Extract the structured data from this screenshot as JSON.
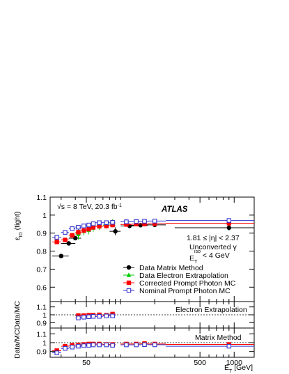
{
  "chart_data": {
    "type": "scatter",
    "xscale": "log",
    "x_ticks": [
      50,
      500,
      1000
    ],
    "x_tick_labels": [
      "50",
      "500",
      "1000"
    ],
    "xlabel_main": "E",
    "xlabel_sub": "T",
    "xlabel_unit": " [GeV]",
    "xlim": [
      24,
      1500
    ],
    "main": {
      "ylabel_main": "ε",
      "ylabel_sub": "ID",
      "ylabel_tail": " (tight)",
      "ylim": [
        0.52,
        1.1
      ],
      "y_ticks": [
        0.6,
        0.7,
        0.8,
        0.9,
        1.0,
        1.1
      ],
      "y_tick_labels": [
        "0.6",
        "0.7",
        "0.8",
        "0.9",
        "1",
        "1.1"
      ],
      "atlas_label": "ATLAS",
      "energy_label": "√s = 8 TeV, 20.3 fb",
      "energy_sup": "-1",
      "eta_label": "1.81 ≤ |η| < 2.37",
      "conv_label": "Unconverted γ",
      "iso_label_pre": "E",
      "iso_label_sup": "iso",
      "iso_label_sub": "T",
      "iso_label_post": " < 4 GeV",
      "series": [
        {
          "name": "Data Matrix Method",
          "color": "#000000",
          "marker": "circle",
          "x": [
            30,
            35,
            40,
            90,
            120,
            150,
            200,
            900
          ],
          "y": [
            0.773,
            0.843,
            0.872,
            0.91,
            0.94,
            0.944,
            0.946,
            0.93
          ],
          "xerr": [
            [
              25,
              35
            ],
            [
              30,
              40
            ],
            [
              35,
              45
            ],
            [
              80,
              100
            ],
            [
              100,
              150
            ],
            [
              125,
              175
            ],
            [
              150,
              250
            ],
            [
              300,
              1500
            ]
          ],
          "yerr": [
            0.012,
            0.012,
            0.012,
            0.022,
            0.01,
            0.01,
            0.01,
            0.015
          ]
        },
        {
          "name": "Data Electron Extrapolation",
          "color": "#00cc00",
          "marker": "triangle",
          "x": [
            42.5,
            47.5,
            52.5,
            57.5,
            65,
            75,
            85
          ],
          "y": [
            0.895,
            0.912,
            0.918,
            0.93,
            0.938,
            0.945,
            0.955
          ],
          "xerr": [
            [
              40,
              45
            ],
            [
              45,
              50
            ],
            [
              50,
              55
            ],
            [
              55,
              60
            ],
            [
              60,
              70
            ],
            [
              70,
              80
            ],
            [
              80,
              90
            ]
          ],
          "yerr": [
            0.03,
            0.025,
            0.025,
            0.022,
            0.02,
            0.02,
            0.022
          ]
        },
        {
          "name": "Corrected Prompt Photon MC",
          "color": "#ff0000",
          "marker": "square",
          "x": [
            27.5,
            32.5,
            37.5,
            42.5,
            47.5,
            52.5,
            57.5,
            65,
            75,
            85,
            112.5,
            137.5,
            162.5,
            200,
            900
          ],
          "y": [
            0.851,
            0.862,
            0.888,
            0.905,
            0.914,
            0.922,
            0.932,
            0.938,
            0.94,
            0.945,
            0.948,
            0.95,
            0.95,
            0.952,
            0.955
          ],
          "xerr": [
            [
              25,
              30
            ],
            [
              30,
              35
            ],
            [
              35,
              40
            ],
            [
              40,
              45
            ],
            [
              45,
              50
            ],
            [
              50,
              55
            ],
            [
              55,
              60
            ],
            [
              60,
              70
            ],
            [
              70,
              80
            ],
            [
              80,
              90
            ],
            [
              100,
              125
            ],
            [
              125,
              150
            ],
            [
              150,
              175
            ],
            [
              175,
              250
            ],
            [
              250,
              1500
            ]
          ],
          "yerr": [
            0.005,
            0.005,
            0.005,
            0.005,
            0.005,
            0.005,
            0.005,
            0.005,
            0.005,
            0.005,
            0.005,
            0.005,
            0.005,
            0.005,
            0.005
          ]
        },
        {
          "name": "Nominal Prompt Photon MC",
          "color": "#3333cc",
          "marker": "open-square",
          "x": [
            27.5,
            32.5,
            37.5,
            42.5,
            47.5,
            52.5,
            57.5,
            65,
            75,
            85,
            112.5,
            137.5,
            162.5,
            200,
            900
          ],
          "y": [
            0.877,
            0.904,
            0.925,
            0.933,
            0.94,
            0.945,
            0.952,
            0.958,
            0.958,
            0.96,
            0.963,
            0.965,
            0.966,
            0.967,
            0.97
          ],
          "xerr": [
            [
              25,
              30
            ],
            [
              30,
              35
            ],
            [
              35,
              40
            ],
            [
              40,
              45
            ],
            [
              45,
              50
            ],
            [
              50,
              55
            ],
            [
              55,
              60
            ],
            [
              60,
              70
            ],
            [
              70,
              80
            ],
            [
              80,
              90
            ],
            [
              100,
              125
            ],
            [
              125,
              150
            ],
            [
              150,
              175
            ],
            [
              175,
              250
            ],
            [
              250,
              1500
            ]
          ],
          "yerr": [
            0.003,
            0.003,
            0.003,
            0.003,
            0.003,
            0.003,
            0.003,
            0.003,
            0.003,
            0.003,
            0.003,
            0.003,
            0.003,
            0.003,
            0.003
          ]
        }
      ]
    },
    "ratio_ylabel": "Data/MC",
    "ratio_panels": [
      {
        "title": "Electron Extrapolation",
        "ylim": [
          0.85,
          1.15
        ],
        "y_ticks": [
          0.9,
          1.0,
          1.1
        ],
        "y_tick_labels": [
          "0.9",
          "1",
          "1.1"
        ],
        "series": [
          {
            "name": "Corrected",
            "color": "#ff0000",
            "marker": "square",
            "x": [
              42.5,
              47.5,
              52.5,
              57.5,
              65,
              75,
              85
            ],
            "y": [
              0.99,
              0.99,
              0.995,
              0.995,
              1.0,
              0.995,
              1.01
            ],
            "xerr": [
              [
                40,
                45
              ],
              [
                45,
                50
              ],
              [
                50,
                55
              ],
              [
                55,
                60
              ],
              [
                60,
                70
              ],
              [
                70,
                80
              ],
              [
                80,
                90
              ]
            ],
            "yerr": [
              0.015,
              0.015,
              0.015,
              0.015,
              0.015,
              0.015,
              0.015
            ]
          },
          {
            "name": "Nominal",
            "color": "#3333cc",
            "marker": "open-square",
            "x": [
              42.5,
              47.5,
              52.5,
              57.5,
              65,
              75,
              85
            ],
            "y": [
              0.96,
              0.97,
              0.975,
              0.98,
              0.98,
              0.985,
              0.985
            ],
            "xerr": [
              [
                40,
                45
              ],
              [
                45,
                50
              ],
              [
                50,
                55
              ],
              [
                55,
                60
              ],
              [
                60,
                70
              ],
              [
                70,
                80
              ],
              [
                80,
                90
              ]
            ],
            "yerr": [
              0.015,
              0.015,
              0.015,
              0.015,
              0.015,
              0.015,
              0.015
            ]
          }
        ]
      },
      {
        "title": "Matrix Method",
        "ylim": [
          0.85,
          1.15
        ],
        "y_ticks": [
          0.9,
          1.0,
          1.1
        ],
        "y_tick_labels": [
          "0.9",
          "1",
          "1.1"
        ],
        "series": [
          {
            "name": "Corrected",
            "color": "#ff0000",
            "marker": "square",
            "x": [
              27.5,
              32.5,
              37.5,
              42.5,
              47.5,
              52.5,
              57.5,
              65,
              75,
              85,
              112.5,
              137.5,
              162.5,
              200,
              900
            ],
            "y": [
              0.91,
              0.96,
              0.97,
              0.975,
              0.98,
              0.985,
              0.985,
              0.985,
              0.98,
              0.98,
              0.985,
              0.985,
              0.99,
              0.985,
              0.98
            ],
            "xerr": [
              [
                25,
                30
              ],
              [
                30,
                35
              ],
              [
                35,
                40
              ],
              [
                40,
                45
              ],
              [
                45,
                50
              ],
              [
                50,
                55
              ],
              [
                55,
                60
              ],
              [
                60,
                70
              ],
              [
                70,
                80
              ],
              [
                80,
                90
              ],
              [
                100,
                125
              ],
              [
                125,
                150
              ],
              [
                150,
                175
              ],
              [
                175,
                250
              ],
              [
                250,
                1500
              ]
            ],
            "yerr": [
              0.02,
              0.015,
              0.015,
              0.015,
              0.015,
              0.015,
              0.015,
              0.015,
              0.015,
              0.015,
              0.015,
              0.015,
              0.015,
              0.015,
              0.02
            ]
          },
          {
            "name": "Nominal",
            "color": "#3333cc",
            "marker": "open-square",
            "x": [
              27.5,
              32.5,
              37.5,
              42.5,
              47.5,
              52.5,
              57.5,
              65,
              75,
              85,
              112.5,
              137.5,
              162.5,
              200,
              900
            ],
            "y": [
              0.885,
              0.935,
              0.95,
              0.96,
              0.965,
              0.97,
              0.975,
              0.975,
              0.975,
              0.97,
              0.975,
              0.975,
              0.978,
              0.976,
              0.96
            ],
            "xerr": [
              [
                25,
                30
              ],
              [
                30,
                35
              ],
              [
                35,
                40
              ],
              [
                40,
                45
              ],
              [
                45,
                50
              ],
              [
                50,
                55
              ],
              [
                55,
                60
              ],
              [
                60,
                70
              ],
              [
                70,
                80
              ],
              [
                80,
                90
              ],
              [
                100,
                125
              ],
              [
                125,
                150
              ],
              [
                150,
                175
              ],
              [
                175,
                250
              ],
              [
                250,
                1500
              ]
            ],
            "yerr": [
              0.02,
              0.015,
              0.015,
              0.015,
              0.015,
              0.015,
              0.015,
              0.015,
              0.015,
              0.015,
              0.015,
              0.015,
              0.015,
              0.015,
              0.02
            ]
          }
        ]
      }
    ]
  }
}
